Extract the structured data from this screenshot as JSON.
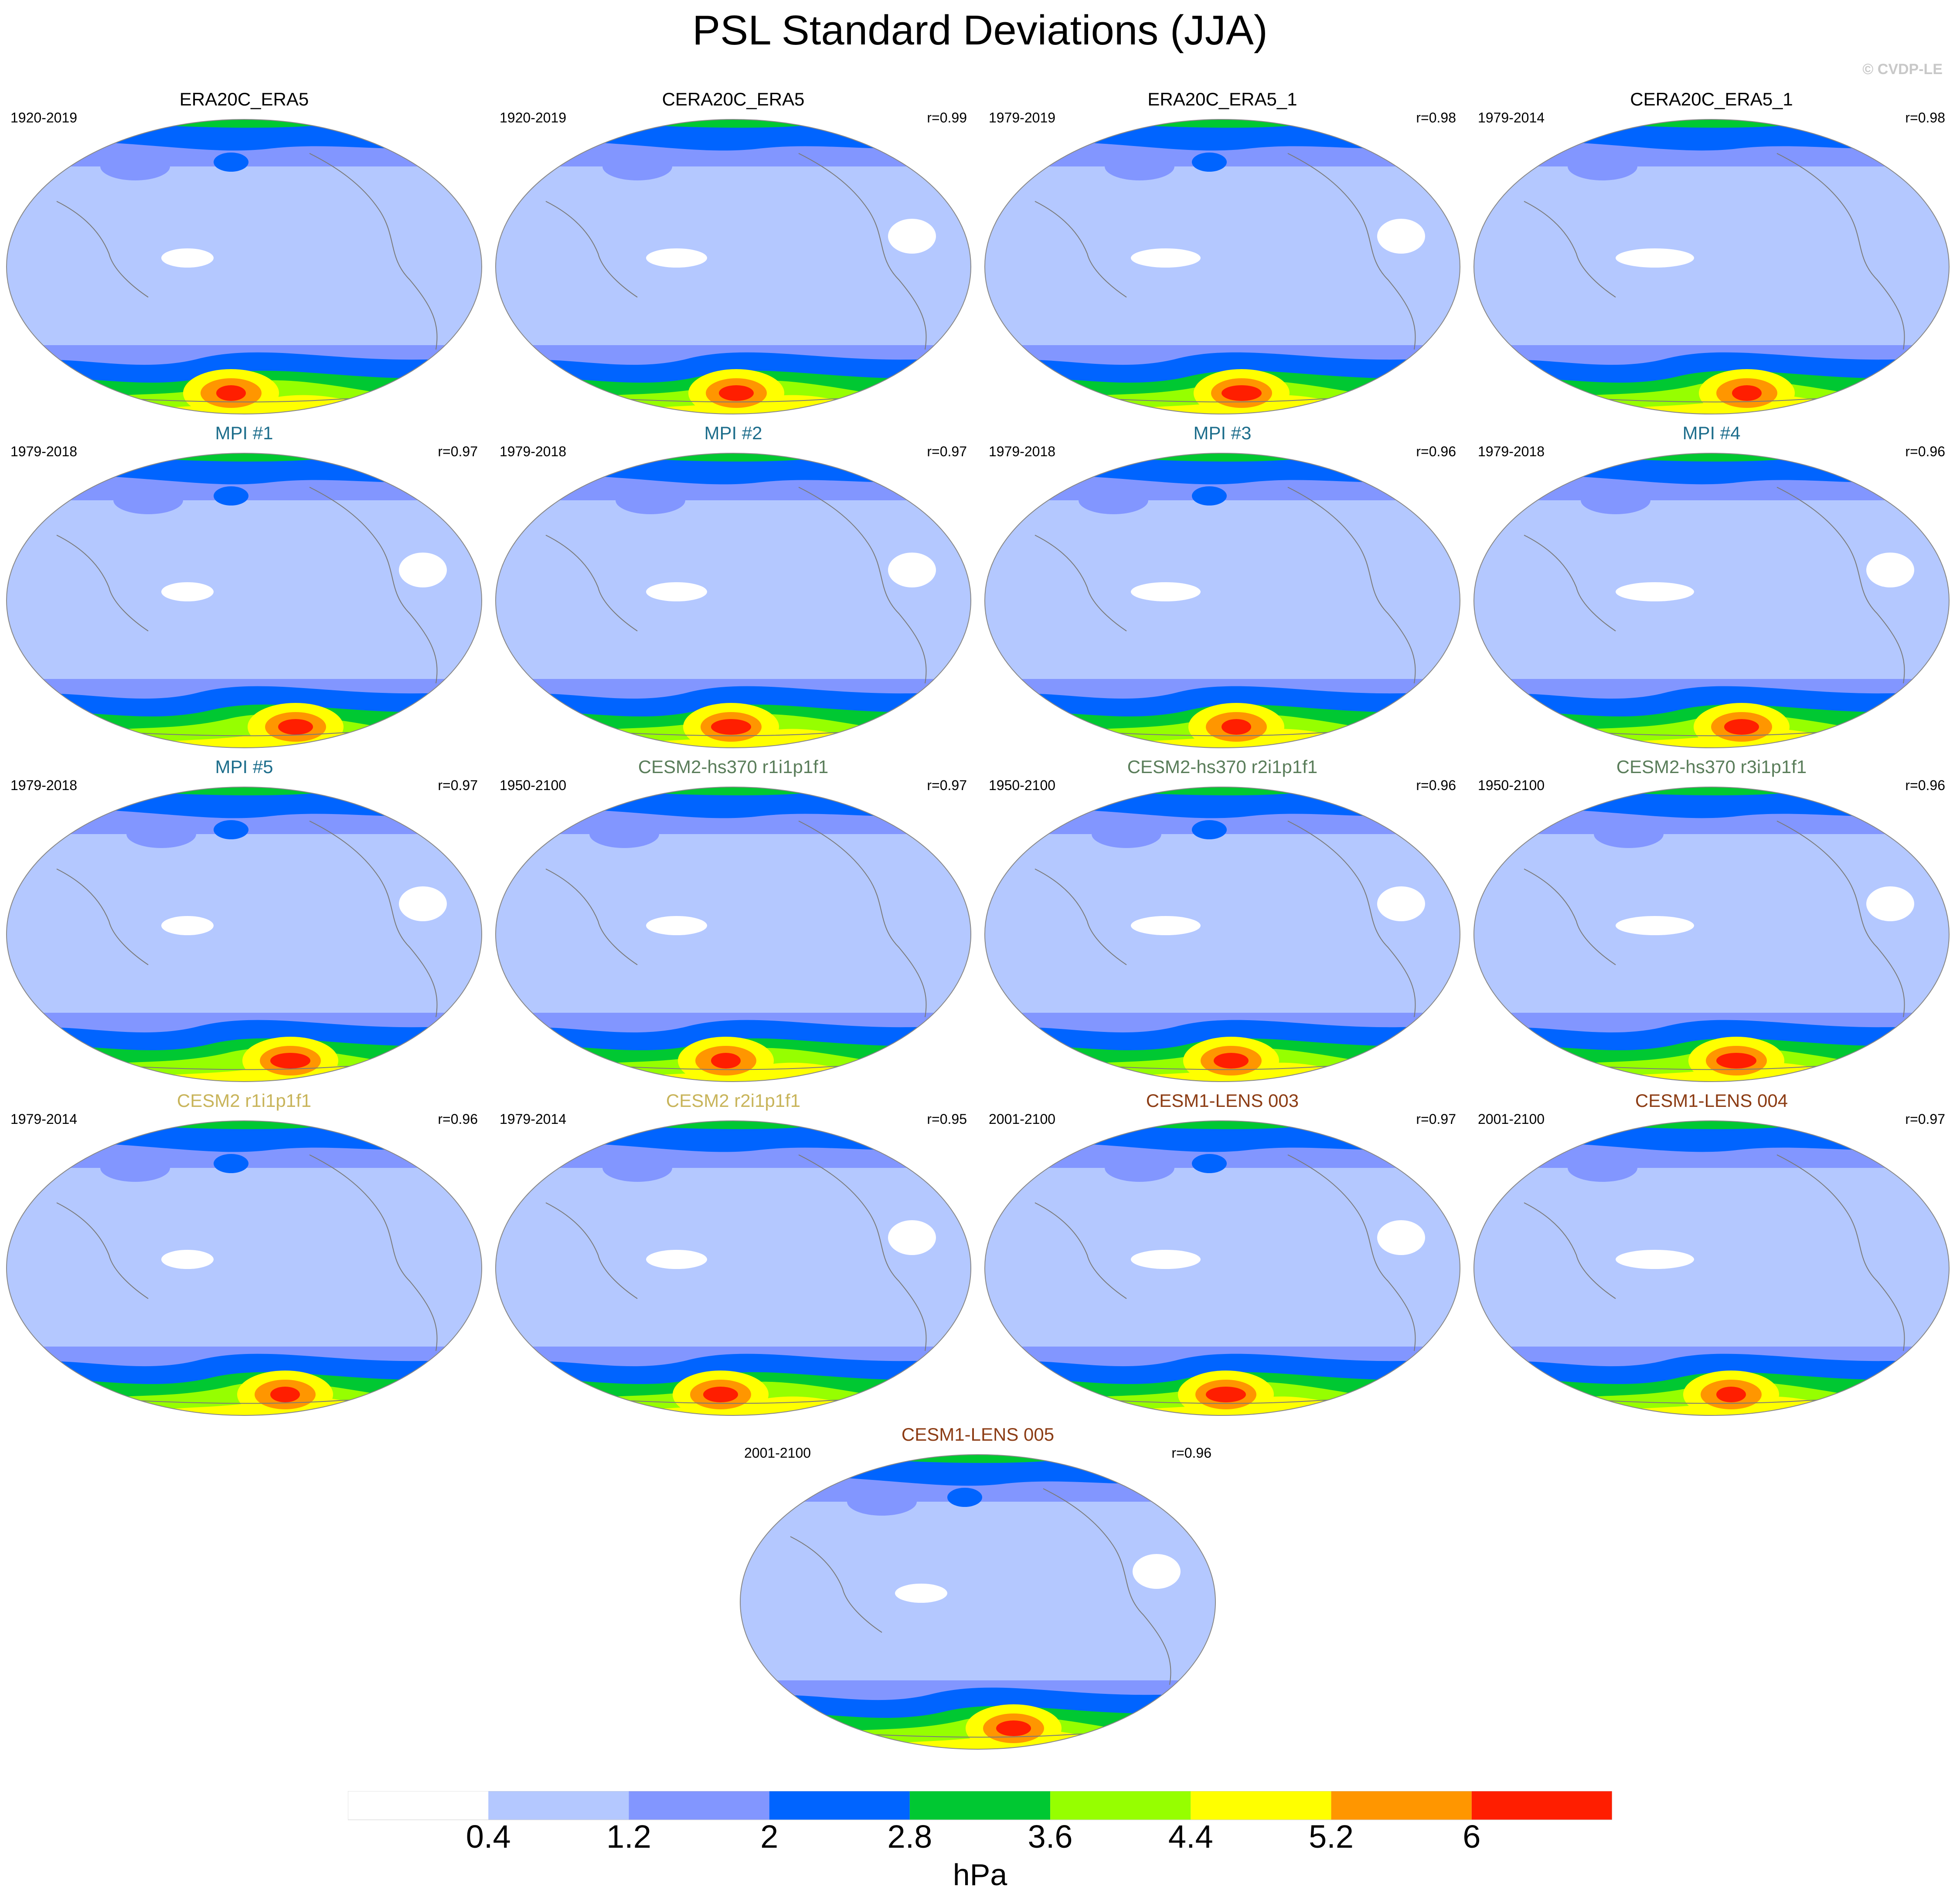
{
  "title": "PSL Standard Deviations (JJA)",
  "copyright": "© CVDP-LE",
  "colorbar": {
    "unit_label": "hPa",
    "ticks": [
      "0.4",
      "1.2",
      "2",
      "2.8",
      "3.6",
      "4.4",
      "5.2",
      "6"
    ],
    "colors": [
      "#ffffff",
      "#b4c8ff",
      "#8296ff",
      "#0064ff",
      "#00c832",
      "#96ff00",
      "#ffff00",
      "#ff9600",
      "#ff1e00"
    ]
  },
  "panels": [
    {
      "title": "ERA20C_ERA5",
      "years": "1920-2019",
      "r": "",
      "title_color": "#000000"
    },
    {
      "title": "CERA20C_ERA5",
      "years": "1920-2019",
      "r": "r=0.99",
      "title_color": "#000000"
    },
    {
      "title": "ERA20C_ERA5_1",
      "years": "1979-2019",
      "r": "r=0.98",
      "title_color": "#000000"
    },
    {
      "title": "CERA20C_ERA5_1",
      "years": "1979-2014",
      "r": "r=0.98",
      "title_color": "#000000"
    },
    {
      "title": "MPI #1",
      "years": "1979-2018",
      "r": "r=0.97",
      "title_color": "#1e6e8c"
    },
    {
      "title": "MPI #2",
      "years": "1979-2018",
      "r": "r=0.97",
      "title_color": "#1e6e8c"
    },
    {
      "title": "MPI #3",
      "years": "1979-2018",
      "r": "r=0.96",
      "title_color": "#1e6e8c"
    },
    {
      "title": "MPI #4",
      "years": "1979-2018",
      "r": "r=0.96",
      "title_color": "#1e6e8c"
    },
    {
      "title": "MPI #5",
      "years": "1979-2018",
      "r": "r=0.97",
      "title_color": "#1e6e8c"
    },
    {
      "title": "CESM2-hs370 r1i1p1f1",
      "years": "1950-2100",
      "r": "r=0.97",
      "title_color": "#5a7d5a"
    },
    {
      "title": "CESM2-hs370 r2i1p1f1",
      "years": "1950-2100",
      "r": "r=0.96",
      "title_color": "#5a7d5a"
    },
    {
      "title": "CESM2-hs370 r3i1p1f1",
      "years": "1950-2100",
      "r": "r=0.96",
      "title_color": "#5a7d5a"
    },
    {
      "title": "CESM2 r1i1p1f1",
      "years": "1979-2014",
      "r": "r=0.96",
      "title_color": "#c8b45a"
    },
    {
      "title": "CESM2 r2i1p1f1",
      "years": "1979-2014",
      "r": "r=0.95",
      "title_color": "#c8b45a"
    },
    {
      "title": "CESM1-LENS 003",
      "years": "2001-2100",
      "r": "r=0.97",
      "title_color": "#8c3c14"
    },
    {
      "title": "CESM1-LENS 004",
      "years": "2001-2100",
      "r": "r=0.97",
      "title_color": "#8c3c14"
    },
    {
      "title": "CESM1-LENS 005",
      "years": "2001-2100",
      "r": "r=0.96",
      "title_color": "#8c3c14"
    }
  ]
}
